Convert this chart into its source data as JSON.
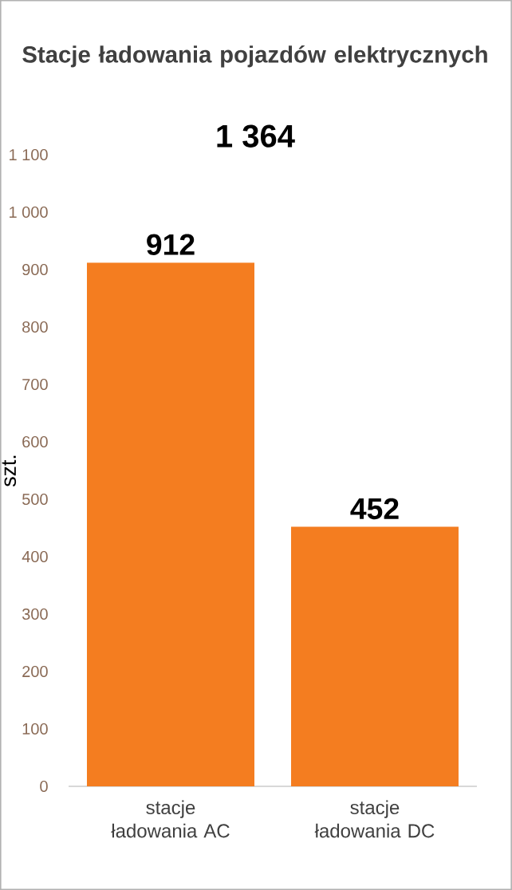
{
  "chart_data": {
    "type": "bar",
    "title": "Stacje ładowania pojazdów elektrycznych",
    "annotations": [
      "1 364"
    ],
    "ylabel": "szt.",
    "categories": [
      "stacje ładowania AC",
      "stacje ładowania DC"
    ],
    "values": [
      912,
      452
    ],
    "value_labels": [
      "912",
      "452"
    ],
    "color": "#f47d20",
    "ylim": [
      0,
      1100
    ],
    "yticks": [
      0,
      100,
      200,
      300,
      400,
      500,
      600,
      700,
      800,
      900,
      {
        "value": 1000,
        "label": "1 000"
      },
      {
        "value": 1100,
        "label": "1 100"
      }
    ],
    "data_labels": true
  }
}
